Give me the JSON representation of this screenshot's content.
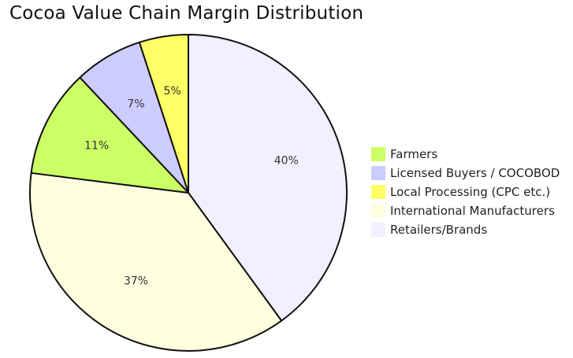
{
  "chart_data": {
    "type": "pie",
    "title": "Cocoa Value Chain Margin Distribution",
    "categories": [
      "Farmers",
      "Licensed Buyers / COCOBOD",
      "Local Processing (CPC etc.)",
      "International Manufacturers",
      "Retailers/Brands"
    ],
    "values": [
      11,
      7,
      5,
      37,
      40
    ],
    "labels": [
      "11%",
      "7%",
      "5%",
      "37%",
      "40%"
    ],
    "colors": [
      "#ccff66",
      "#ccccff",
      "#ffff66",
      "#ffffe0",
      "#f0f0ff"
    ],
    "legend_position": "right",
    "start_angle_deg": 0,
    "direction": "clockwise",
    "slice_order": [
      4,
      3,
      0,
      1,
      2
    ]
  }
}
